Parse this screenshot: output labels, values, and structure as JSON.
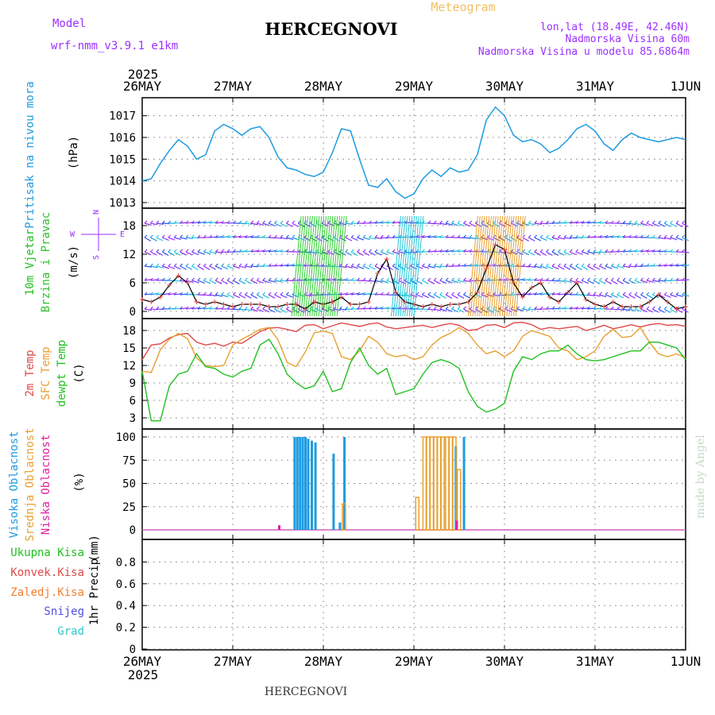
{
  "header": {
    "model_label": "Model",
    "model_name": "wrf-nmm_v3.9.1 e1km",
    "title": "HERCEGNOVI",
    "meteogram_label": "Meteogram",
    "lonlat": "lon,lat (18.49E, 42.46N)",
    "elevation": "Nadmorska Visina 60m",
    "model_elevation": "Nadmorska Visina u modelu 85.6864m"
  },
  "footer": {
    "station": "HERCEGNOVI",
    "credit": "made by Angel"
  },
  "colors": {
    "pressure": "#1e9be0",
    "wind_label": "#20c020",
    "wind_label2": "#30c030",
    "purple": "#9b30ff",
    "temp2m": "#e04848",
    "sfc": "#e8a030",
    "dew": "#20c020",
    "high_cloud": "#1e9be0",
    "mid_cloud": "#e8a030",
    "low_cloud": "#e020a0",
    "rain_total": "#20c020",
    "rain_conv": "#e04848",
    "rain_frozen": "#f08030",
    "snow": "#5050e0",
    "hail": "#30c8c8"
  },
  "chart_data": [
    {
      "type": "line",
      "id": "time-axis",
      "year": "2025",
      "x_ticks": [
        "26MAY",
        "27MAY",
        "28MAY",
        "29MAY",
        "30MAY",
        "31MAY",
        "1JUN"
      ]
    },
    {
      "type": "line",
      "id": "pressure",
      "ylabel": "Pritisak na nivou mora",
      "unit": "(hPa)",
      "ylim": [
        1013,
        1017.5
      ],
      "y_ticks": [
        1013,
        1014,
        1015,
        1016,
        1017
      ],
      "x_days": [
        0,
        0.1,
        0.2,
        0.3,
        0.4,
        0.5,
        0.6,
        0.7,
        0.8,
        0.9,
        1.0,
        1.1,
        1.2,
        1.3,
        1.4,
        1.5,
        1.6,
        1.7,
        1.8,
        1.9,
        2.0,
        2.1,
        2.2,
        2.3,
        2.4,
        2.5,
        2.6,
        2.7,
        2.8,
        2.9,
        3.0,
        3.1,
        3.2,
        3.3,
        3.4,
        3.5,
        3.6,
        3.7,
        3.8,
        3.9,
        4.0,
        4.1,
        4.2,
        4.3,
        4.4,
        4.5,
        4.6,
        4.7,
        4.8,
        4.9,
        5.0,
        5.1,
        5.2,
        5.3,
        5.4,
        5.5,
        5.6,
        5.7,
        5.8,
        5.9,
        6.0
      ],
      "values": [
        1014.0,
        1014.1,
        1014.8,
        1015.4,
        1015.9,
        1015.6,
        1015.0,
        1015.2,
        1016.3,
        1016.6,
        1016.4,
        1016.1,
        1016.4,
        1016.5,
        1016.0,
        1015.1,
        1014.6,
        1014.5,
        1014.3,
        1014.2,
        1014.4,
        1015.3,
        1016.4,
        1016.3,
        1015.0,
        1013.8,
        1013.7,
        1014.1,
        1013.5,
        1013.2,
        1013.4,
        1014.1,
        1014.5,
        1014.2,
        1014.6,
        1014.4,
        1014.5,
        1015.2,
        1016.8,
        1017.4,
        1017.0,
        1016.1,
        1015.8,
        1015.9,
        1015.7,
        1015.3,
        1015.5,
        1015.9,
        1016.4,
        1016.6,
        1016.3,
        1015.7,
        1015.4,
        1015.9,
        1016.2,
        1016.0,
        1015.9,
        1015.8,
        1015.9,
        1016.0,
        1015.9
      ]
    },
    {
      "type": "line",
      "id": "wind",
      "ylabel": "10m Vjetar",
      "ylabel2": "Brzina i Pravac",
      "unit": "(m/s)",
      "compass": {
        "n": "N",
        "w": "W",
        "e": "E",
        "s": "S"
      },
      "ylim": [
        -1,
        21
      ],
      "y_ticks": [
        0,
        6,
        12,
        18
      ],
      "x_days": [
        0,
        0.1,
        0.2,
        0.3,
        0.4,
        0.5,
        0.6,
        0.7,
        0.8,
        0.9,
        1.0,
        1.1,
        1.2,
        1.3,
        1.4,
        1.5,
        1.6,
        1.7,
        1.8,
        1.9,
        2.0,
        2.1,
        2.2,
        2.3,
        2.4,
        2.5,
        2.6,
        2.7,
        2.8,
        2.9,
        3.0,
        3.1,
        3.2,
        3.3,
        3.4,
        3.5,
        3.6,
        3.7,
        3.8,
        3.9,
        4.0,
        4.1,
        4.2,
        4.3,
        4.4,
        4.5,
        4.6,
        4.7,
        4.8,
        4.9,
        5.0,
        5.1,
        5.2,
        5.3,
        5.4,
        5.5,
        5.6,
        5.7,
        5.8,
        5.9,
        6.0
      ],
      "speed": [
        2.5,
        2.0,
        3.0,
        5.5,
        7.5,
        6.0,
        2.0,
        1.5,
        2.0,
        1.5,
        1.0,
        1.5,
        1.5,
        1.5,
        1.0,
        1.0,
        1.5,
        1.5,
        0.5,
        2.0,
        1.5,
        2.0,
        3.0,
        1.5,
        1.5,
        2.0,
        8.0,
        11.0,
        4.0,
        2.0,
        1.5,
        1.0,
        1.5,
        1.0,
        1.5,
        1.5,
        2.0,
        4.0,
        9.0,
        14.0,
        13.0,
        6.0,
        3.0,
        5.0,
        6.0,
        3.0,
        2.0,
        4.0,
        6.0,
        2.5,
        1.5,
        1.0,
        2.0,
        1.0,
        1.0,
        1.0,
        2.0,
        3.5,
        2.0,
        0.5,
        1.0
      ],
      "arrow_rows": [
        0.5,
        3.5,
        6.5,
        9.5,
        12.5,
        15.5,
        18.5
      ]
    },
    {
      "type": "line",
      "id": "temperature",
      "ylabel": "2m Temp",
      "ylabel2": "SFC Temp",
      "ylabel3": "dewpt Temp",
      "unit": "(C)",
      "ylim": [
        1.5,
        19.5
      ],
      "y_ticks": [
        3,
        6,
        9,
        12,
        15,
        18
      ],
      "x_days": [
        0,
        0.1,
        0.2,
        0.3,
        0.4,
        0.5,
        0.6,
        0.7,
        0.8,
        0.9,
        1.0,
        1.1,
        1.2,
        1.3,
        1.4,
        1.5,
        1.6,
        1.7,
        1.8,
        1.9,
        2.0,
        2.1,
        2.2,
        2.3,
        2.4,
        2.5,
        2.6,
        2.7,
        2.8,
        2.9,
        3.0,
        3.1,
        3.2,
        3.3,
        3.4,
        3.5,
        3.6,
        3.7,
        3.8,
        3.9,
        4.0,
        4.1,
        4.2,
        4.3,
        4.4,
        4.5,
        4.6,
        4.7,
        4.8,
        4.9,
        5.0,
        5.1,
        5.2,
        5.3,
        5.4,
        5.5,
        5.6,
        5.7,
        5.8,
        5.9,
        6.0
      ],
      "series": [
        {
          "name": "2m Temp",
          "values": [
            13.0,
            15.5,
            15.7,
            16.7,
            17.3,
            17.5,
            16.0,
            15.5,
            15.8,
            15.3,
            16.0,
            15.8,
            16.8,
            17.8,
            18.4,
            18.5,
            18.2,
            17.8,
            18.9,
            19.0,
            18.3,
            18.8,
            19.3,
            19.0,
            18.7,
            19.1,
            19.3,
            18.6,
            18.3,
            18.5,
            18.7,
            18.9,
            18.5,
            18.9,
            19.2,
            18.9,
            18.0,
            18.2,
            18.9,
            19.0,
            18.5,
            19.3,
            19.4,
            19.0,
            18.2,
            18.5,
            18.3,
            18.5,
            18.7,
            18.0,
            18.4,
            18.9,
            18.3,
            18.6,
            19.0,
            18.6,
            19.0,
            19.2,
            18.9,
            19.0,
            18.7
          ]
        },
        {
          "name": "SFC Temp",
          "values": [
            11.0,
            10.8,
            14.7,
            16.5,
            17.5,
            16.6,
            13.3,
            12.0,
            11.8,
            12.0,
            15.5,
            16.5,
            17.3,
            18.2,
            18.5,
            16.4,
            12.5,
            11.8,
            14.3,
            17.6,
            17.9,
            17.5,
            13.5,
            13.0,
            14.5,
            17.0,
            16.0,
            14.0,
            13.5,
            13.8,
            13.0,
            13.5,
            15.5,
            16.8,
            17.5,
            18.5,
            17.5,
            15.5,
            14.0,
            14.5,
            13.5,
            14.5,
            17.0,
            18.0,
            17.5,
            17.0,
            15.0,
            14.5,
            13.0,
            13.5,
            14.5,
            17.0,
            18.2,
            16.8,
            17.0,
            18.5,
            16.0,
            14.0,
            13.5,
            14.0,
            13.3
          ]
        },
        {
          "name": "dewpt Temp",
          "values": [
            11.0,
            2.5,
            2.5,
            8.5,
            10.5,
            11.0,
            14.0,
            11.8,
            11.5,
            10.5,
            10.0,
            11.0,
            11.5,
            15.5,
            16.5,
            14.0,
            10.5,
            9.0,
            8.0,
            8.5,
            11.0,
            7.5,
            8.0,
            12.5,
            15.0,
            12.0,
            10.5,
            11.5,
            7.0,
            7.5,
            8.0,
            10.5,
            12.5,
            13.0,
            12.5,
            11.5,
            7.5,
            5.0,
            4.0,
            4.5,
            5.5,
            11.0,
            13.5,
            13.0,
            14.0,
            14.5,
            14.5,
            15.5,
            14.0,
            13.0,
            12.8,
            13.0,
            13.5,
            14.0,
            14.5,
            14.5,
            16.0,
            16.0,
            15.5,
            15.0,
            13.0
          ]
        }
      ]
    },
    {
      "type": "bar",
      "id": "clouds",
      "ylabel": "Visoka Oblacnost",
      "ylabel2": "Srednja Oblacnost",
      "ylabel3": "Niska Oblacnost",
      "unit": "(%)",
      "ylim": [
        0,
        100
      ],
      "y_ticks": [
        0,
        25,
        50,
        75,
        100
      ],
      "series": [
        {
          "name": "Visoka Oblacnost",
          "x_days": [
            1.67,
            1.7,
            1.73,
            1.76,
            1.79,
            1.82,
            1.86,
            1.9,
            2.1,
            2.17,
            2.22,
            3.45,
            3.54
          ],
          "values": [
            100,
            100,
            100,
            100,
            100,
            98,
            96,
            94,
            82,
            8,
            100,
            90,
            100
          ]
        },
        {
          "name": "Srednja Oblacnost",
          "x_days": [
            3.02,
            3.1,
            3.14,
            3.18,
            3.22,
            3.26,
            3.3,
            3.35,
            3.39,
            3.43,
            3.48,
            2.21
          ],
          "values": [
            35,
            100,
            100,
            100,
            100,
            100,
            100,
            100,
            100,
            100,
            65,
            28
          ]
        },
        {
          "name": "Niska Oblacnost",
          "x_days": [
            1.5,
            3.46
          ],
          "values": [
            5,
            10
          ]
        }
      ]
    },
    {
      "type": "bar",
      "id": "precip",
      "ylabel": "1hr Precip",
      "unit": "(mm)",
      "ylim": [
        0,
        1
      ],
      "y_ticks": [
        0,
        0.2,
        0.4,
        0.6,
        0.8
      ],
      "legend": [
        "Ukupna Kisa",
        "Konvek.Kisa",
        "Zaledj.Kisa",
        "Snijeg",
        "Grad"
      ],
      "series": []
    }
  ]
}
